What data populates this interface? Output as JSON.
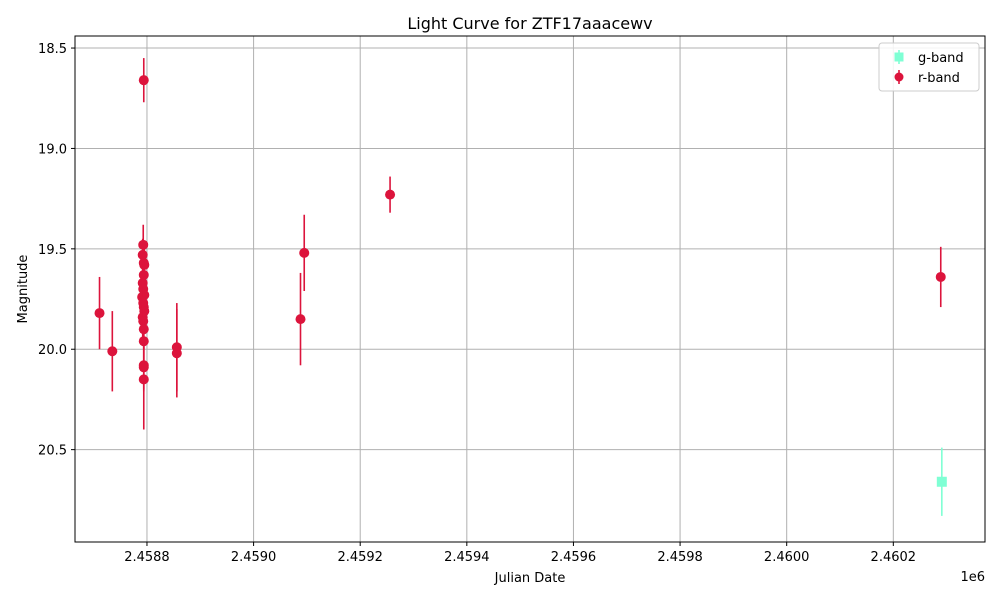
{
  "chart_data": {
    "type": "scatter",
    "title": "Light Curve for ZTF17aaacewv",
    "xlabel": "Julian Date",
    "ylabel": "Magnitude",
    "x_offset_label": "1e6",
    "xlim": [
      2458665,
      2460372
    ],
    "ylim": [
      20.96,
      18.44
    ],
    "y_inverted": true,
    "grid": true,
    "legend_position": "top-right",
    "x_ticks": [
      {
        "value": 2458800,
        "label": "2.4588"
      },
      {
        "value": 2459000,
        "label": "2.4590"
      },
      {
        "value": 2459200,
        "label": "2.4592"
      },
      {
        "value": 2459400,
        "label": "2.4594"
      },
      {
        "value": 2459600,
        "label": "2.4596"
      },
      {
        "value": 2459800,
        "label": "2.4598"
      },
      {
        "value": 2460000,
        "label": "2.4600"
      },
      {
        "value": 2460200,
        "label": "2.4602"
      }
    ],
    "y_ticks": [
      {
        "value": 18.5,
        "label": "18.5"
      },
      {
        "value": 19.0,
        "label": "19.0"
      },
      {
        "value": 19.5,
        "label": "19.5"
      },
      {
        "value": 20.0,
        "label": "20.0"
      },
      {
        "value": 20.5,
        "label": "20.5"
      }
    ],
    "series": [
      {
        "name": "g-band",
        "color": "#7fffd4",
        "marker": "square",
        "points": [
          {
            "x": 2460291,
            "y": 20.66,
            "err": 0.17
          }
        ]
      },
      {
        "name": "r-band",
        "color": "#dc143c",
        "marker": "circle",
        "points": [
          {
            "x": 2458711,
            "y": 19.82,
            "err": 0.18
          },
          {
            "x": 2458735,
            "y": 20.01,
            "err": 0.2
          },
          {
            "x": 2458794,
            "y": 18.66,
            "err": 0.11
          },
          {
            "x": 2458793,
            "y": 19.48,
            "err": 0.1
          },
          {
            "x": 2458792,
            "y": 19.53,
            "err": 0.08
          },
          {
            "x": 2458794,
            "y": 19.57,
            "err": 0.08
          },
          {
            "x": 2458795,
            "y": 19.58,
            "err": 0.08
          },
          {
            "x": 2458794,
            "y": 19.63,
            "err": 0.09
          },
          {
            "x": 2458792,
            "y": 19.67,
            "err": 0.09
          },
          {
            "x": 2458793,
            "y": 19.7,
            "err": 0.09
          },
          {
            "x": 2458791,
            "y": 19.74,
            "err": 0.09
          },
          {
            "x": 2458795,
            "y": 19.73,
            "err": 0.09
          },
          {
            "x": 2458793,
            "y": 19.77,
            "err": 0.1
          },
          {
            "x": 2458794,
            "y": 19.79,
            "err": 0.1
          },
          {
            "x": 2458795,
            "y": 19.81,
            "err": 0.1
          },
          {
            "x": 2458792,
            "y": 19.84,
            "err": 0.1
          },
          {
            "x": 2458793,
            "y": 19.86,
            "err": 0.1
          },
          {
            "x": 2458794,
            "y": 19.9,
            "err": 0.1
          },
          {
            "x": 2458794,
            "y": 19.96,
            "err": 0.11
          },
          {
            "x": 2458794,
            "y": 20.08,
            "err": 0.12
          },
          {
            "x": 2458794,
            "y": 20.09,
            "err": 0.12
          },
          {
            "x": 2458794,
            "y": 20.15,
            "err": 0.25
          },
          {
            "x": 2458856,
            "y": 19.99,
            "err": 0.22
          },
          {
            "x": 2458856,
            "y": 20.02,
            "err": 0.22
          },
          {
            "x": 2459088,
            "y": 19.85,
            "err": 0.23
          },
          {
            "x": 2459095,
            "y": 19.52,
            "err": 0.19
          },
          {
            "x": 2459256,
            "y": 19.23,
            "err": 0.09
          },
          {
            "x": 2460289,
            "y": 19.64,
            "err": 0.15
          }
        ]
      }
    ]
  }
}
